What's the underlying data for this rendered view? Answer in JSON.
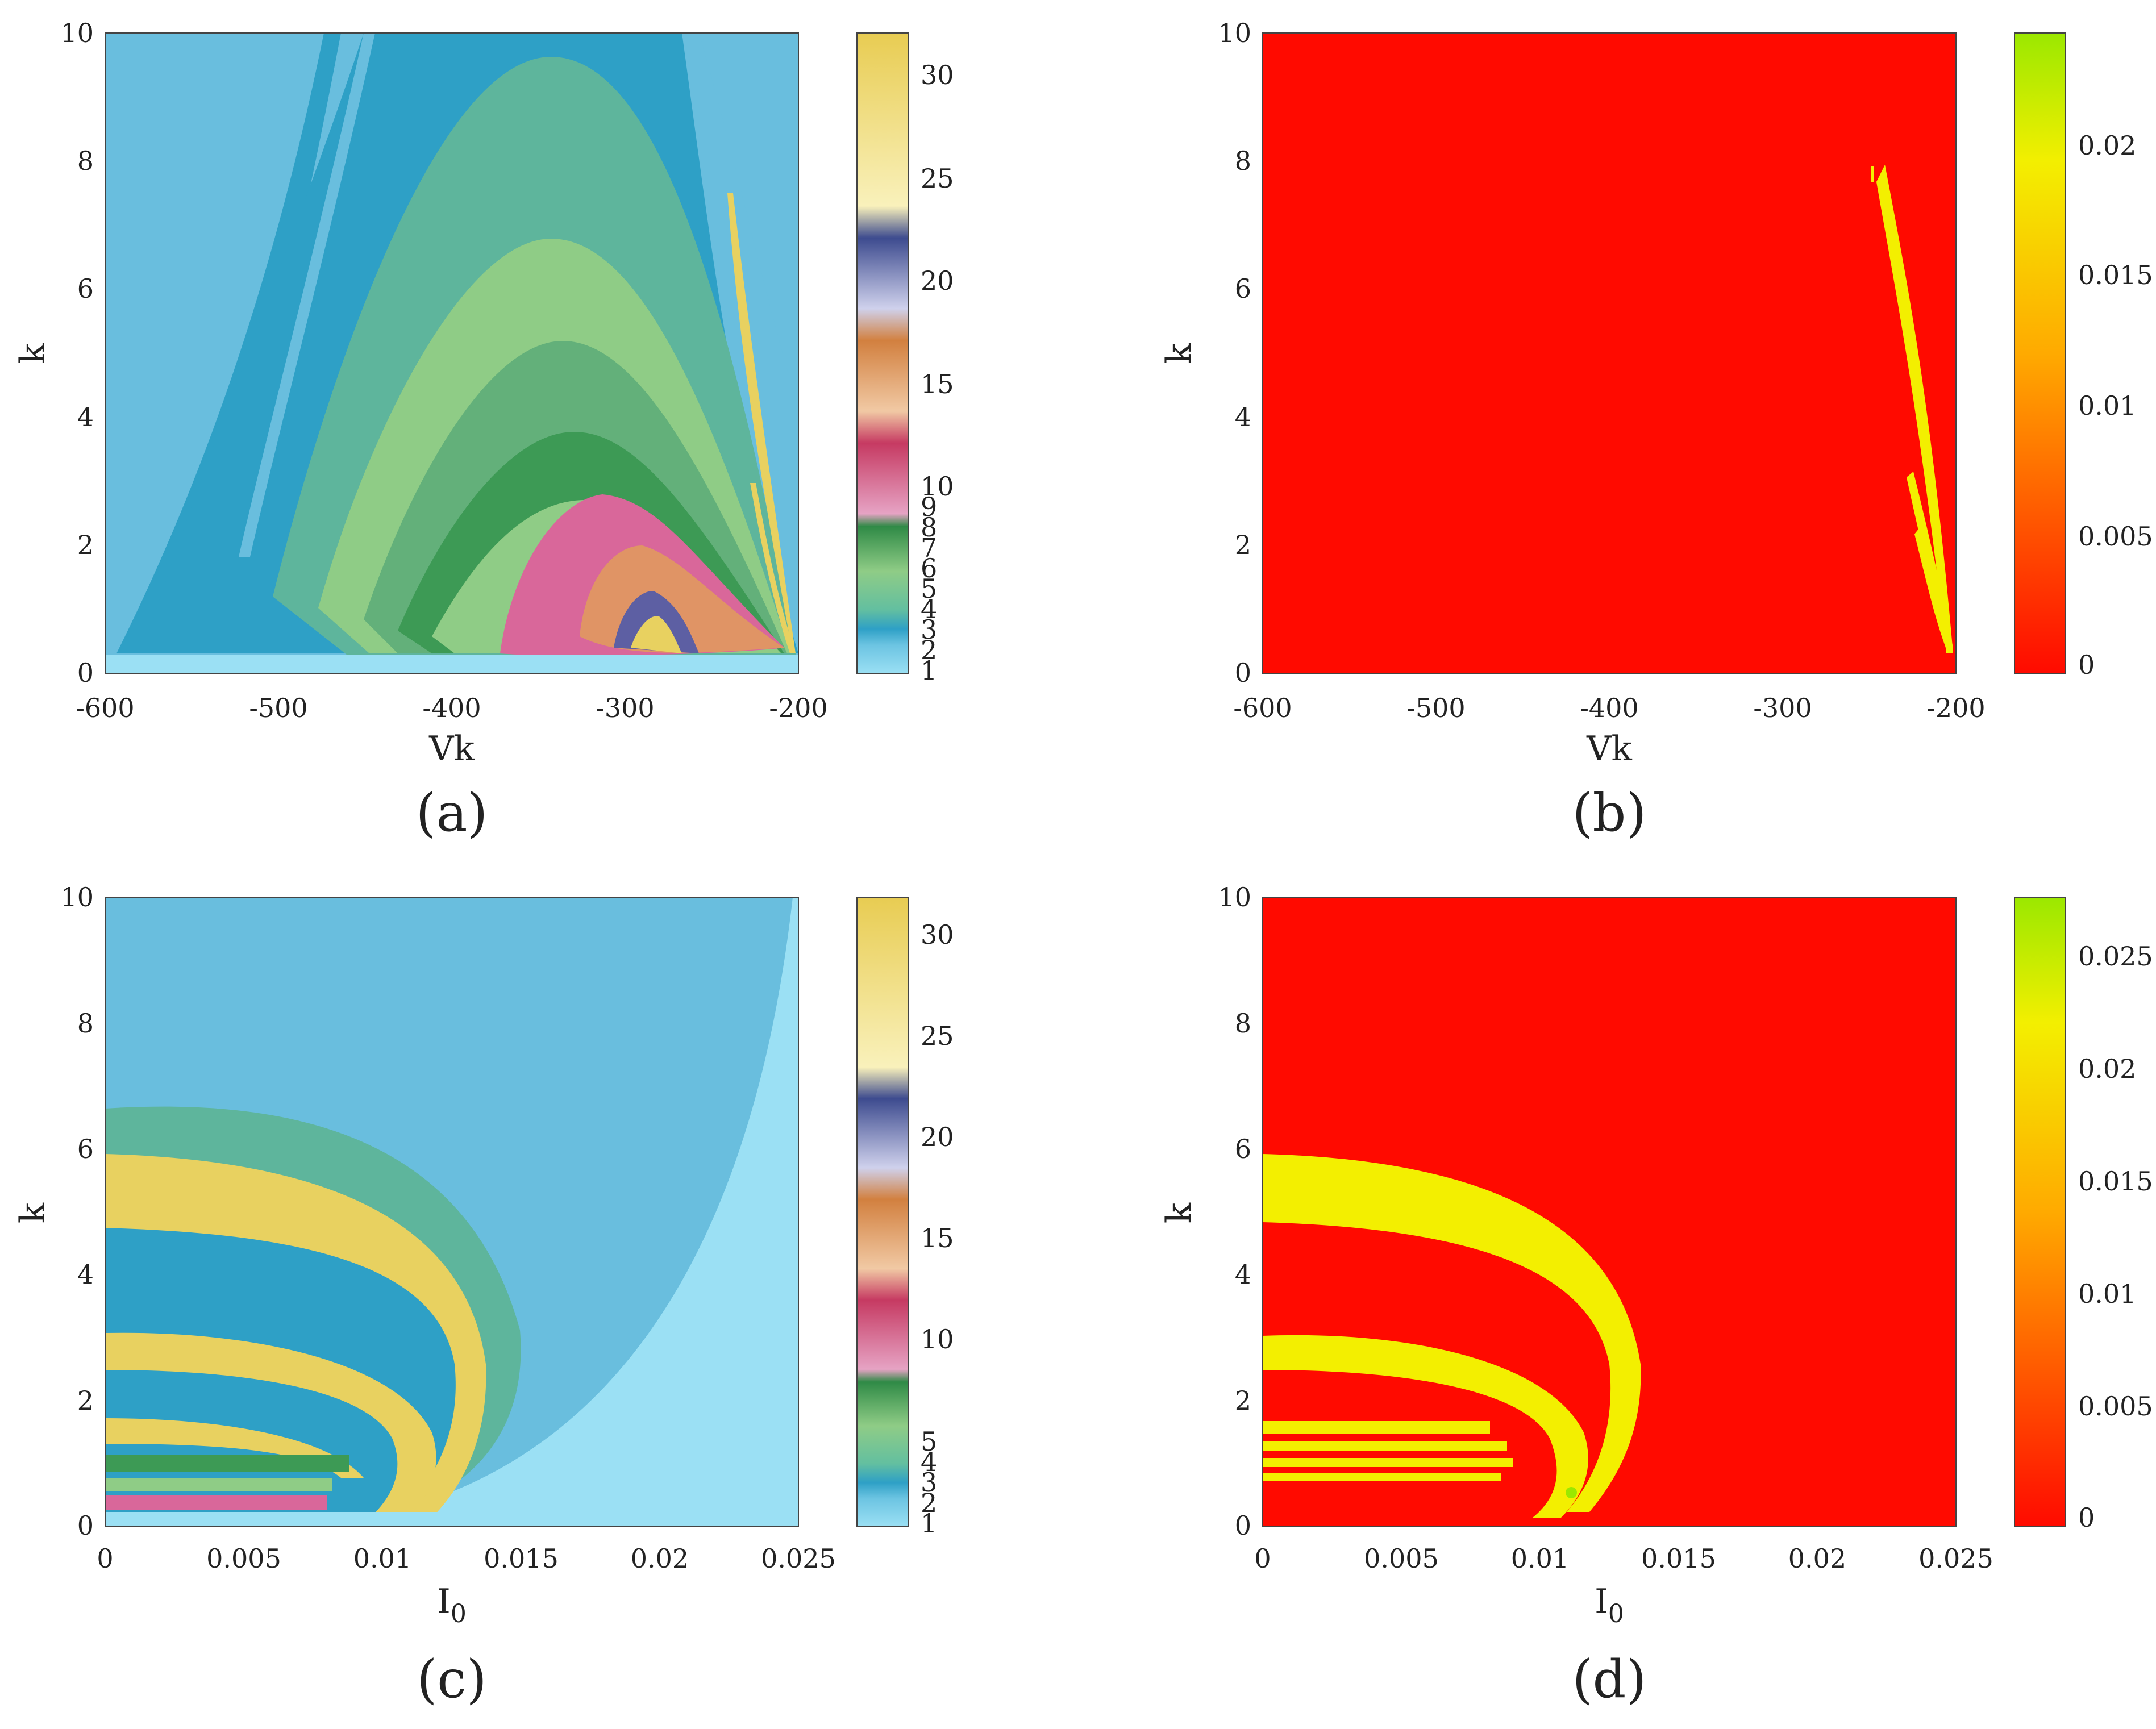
{
  "colors": {
    "a_bg": "#69bede",
    "a_band": "#2ea0c6",
    "a_green_dark": "#3d9a55",
    "a_green_mid": "#63b07a",
    "a_green_light": "#8fcc86",
    "a_teal": "#5eb59c",
    "a_pink": "#d9679a",
    "a_orange": "#e09465",
    "a_purple": "#5d5fa3",
    "a_yellow": "#e8d160",
    "lyap_red": "#ff0a00",
    "lyap_yellow": "#f3ef00",
    "lyap_green": "#9be800"
  },
  "chart_data": [
    {
      "id": "a",
      "type": "heatmap",
      "caption": "(a)",
      "xlabel": "Vk",
      "ylabel": "k",
      "xlim": [
        -600,
        -200
      ],
      "ylim": [
        0,
        10
      ],
      "xticks": [
        "-600",
        "-500",
        "-400",
        "-300",
        "-200"
      ],
      "yticks": [
        "0",
        "2",
        "4",
        "6",
        "8",
        "10"
      ],
      "colorbar": {
        "ticks": [
          "1",
          "2",
          "3",
          "4",
          "5",
          "6",
          "7",
          "8",
          "9",
          "10",
          "15",
          "20",
          "25",
          "30"
        ],
        "scale": "piecewise",
        "range": [
          1,
          32
        ],
        "colormap": "periodicity"
      }
    },
    {
      "id": "b",
      "type": "heatmap",
      "caption": "(b)",
      "xlabel": "Vk",
      "ylabel": "k",
      "xlim": [
        -600,
        -200
      ],
      "ylim": [
        0,
        10
      ],
      "xticks": [
        "-600",
        "-500",
        "-400",
        "-300",
        "-200"
      ],
      "yticks": [
        "0",
        "2",
        "4",
        "6",
        "8",
        "10"
      ],
      "colorbar": {
        "ticks": [
          "0",
          "0.005",
          "0.01",
          "0.015",
          "0.02"
        ],
        "range": [
          0,
          0.024
        ],
        "colormap": "red-yellow-green"
      }
    },
    {
      "id": "c",
      "type": "heatmap",
      "caption": "(c)",
      "xlabel": "I",
      "xlabel_sub": "0",
      "ylabel": "k",
      "xlim": [
        0,
        0.025
      ],
      "ylim": [
        0,
        10
      ],
      "xticks": [
        "0",
        "0.005",
        "0.01",
        "0.015",
        "0.02",
        "0.025"
      ],
      "yticks": [
        "0",
        "2",
        "4",
        "6",
        "8",
        "10"
      ],
      "colorbar": {
        "ticks": [
          "1",
          "2",
          "3",
          "4",
          "5",
          "10",
          "15",
          "20",
          "25",
          "30"
        ],
        "scale": "piecewise",
        "range": [
          1,
          32
        ],
        "colormap": "periodicity"
      }
    },
    {
      "id": "d",
      "type": "heatmap",
      "caption": "(d)",
      "xlabel": "I",
      "xlabel_sub": "0",
      "ylabel": "k",
      "xlim": [
        0,
        0.025
      ],
      "ylim": [
        0,
        10
      ],
      "xticks": [
        "0",
        "0.005",
        "0.01",
        "0.015",
        "0.02",
        "0.025"
      ],
      "yticks": [
        "0",
        "2",
        "4",
        "6",
        "8",
        "10"
      ],
      "colorbar": {
        "ticks": [
          "0",
          "0.005",
          "0.01",
          "0.015",
          "0.02",
          "0.025"
        ],
        "range": [
          0,
          0.028
        ],
        "colormap": "red-yellow-green"
      }
    }
  ]
}
